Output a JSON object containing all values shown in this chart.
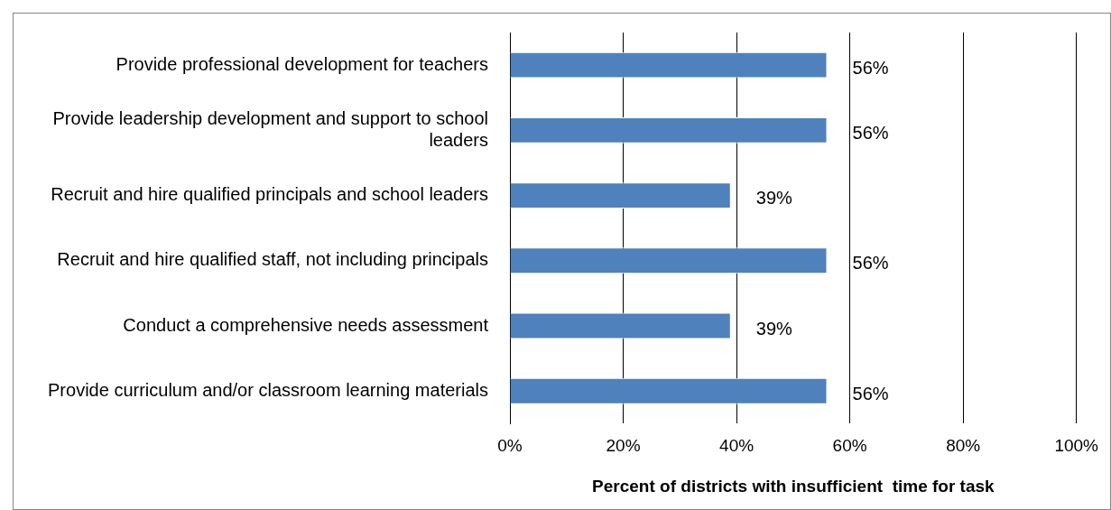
{
  "chart_data": {
    "type": "bar",
    "orientation": "horizontal",
    "xlabel": "Percent of districts with insufficient  time for task",
    "categories": [
      "Provide professional development for teachers",
      "Provide leadership development and support to school leaders",
      "Recruit and hire qualified principals and school leaders",
      "Recruit and hire qualified staff, not including principals",
      "Conduct a comprehensive needs assessment",
      "Provide curriculum and/or classroom learning materials"
    ],
    "values": [
      56,
      56,
      39,
      56,
      39,
      56
    ],
    "value_labels": [
      "56%",
      "56%",
      "39%",
      "56%",
      "39%",
      "56%"
    ],
    "color": "#4f81bd",
    "xlim": [
      0,
      100
    ],
    "xticks": [
      {
        "value": 0,
        "label": "0%"
      },
      {
        "value": 20,
        "label": "20%"
      },
      {
        "value": 40,
        "label": "40%"
      },
      {
        "value": 60,
        "label": "60%"
      },
      {
        "value": 80,
        "label": "80%"
      },
      {
        "value": 100,
        "label": "100%"
      }
    ],
    "grid": "x",
    "legend": false
  }
}
